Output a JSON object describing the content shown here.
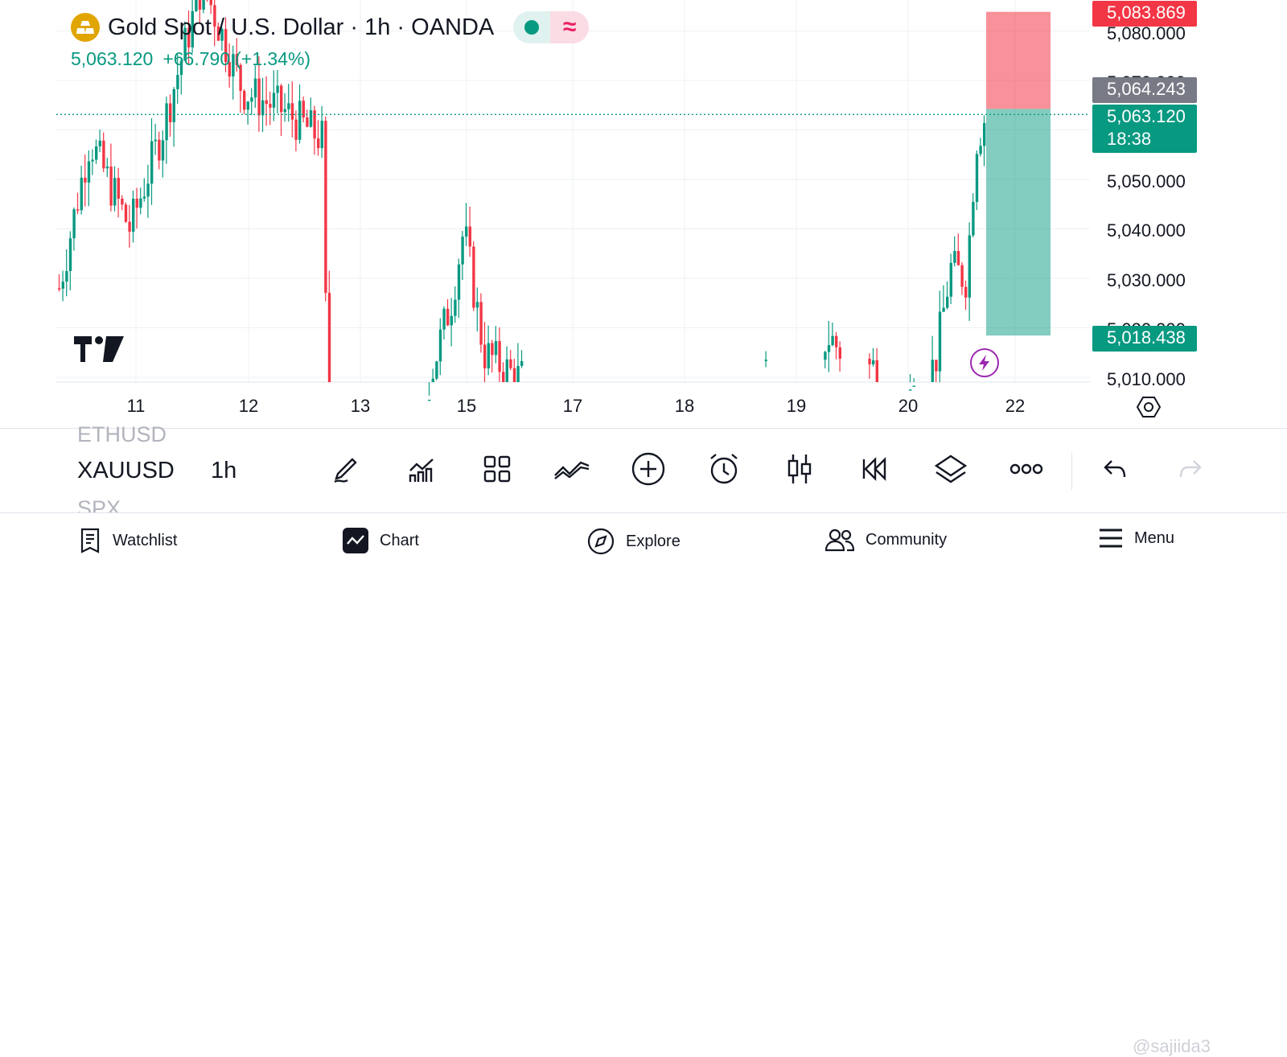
{
  "header": {
    "title": "Gold Spot / U.S. Dollar · 1h · OANDA",
    "status_pill": "≈"
  },
  "quote": {
    "last": "5,063.120",
    "change": "+66.790",
    "change_pct": "(+1.34%)"
  },
  "price_scale": {
    "labels": [
      "5,080.000",
      "5,070.000",
      "5,050.000",
      "5,040.000",
      "5,030.000",
      "5,020.000",
      "5,010.000"
    ],
    "tags": [
      {
        "price": 5083.869,
        "text": "5,083.869",
        "color": "#f23645"
      },
      {
        "price": 5064.243,
        "text": "5,064.243",
        "color": "#787b86"
      },
      {
        "price": 5063.12,
        "text": "5,063.120",
        "sub": "18:38",
        "color": "#089981"
      },
      {
        "price": 5018.438,
        "text": "5,018.438",
        "color": "#089981"
      }
    ]
  },
  "time_axis": {
    "labels": [
      "11",
      "12",
      "13",
      "15",
      "17",
      "18",
      "19",
      "20",
      "22"
    ]
  },
  "chart_data": {
    "type": "candlestick",
    "symbol": "XAUUSD",
    "interval": "1h",
    "visible_range": [
      5007,
      5085
    ],
    "current_price": 5063.12,
    "position": {
      "type": "long",
      "entry": 5064.243,
      "take_profit": 5083.869,
      "stop_loss": 5018.438
    },
    "colors": {
      "up": "#089981",
      "down": "#f23645"
    }
  },
  "toolbar": {
    "ghost_symbol_above": "ETHUSD",
    "symbol": "XAUUSD",
    "ghost_symbol_below": "SPX",
    "timeframe": "1h",
    "tools": [
      "pencil-icon",
      "indicators-icon",
      "templates-icon",
      "compare-icon",
      "add-icon",
      "alert-icon",
      "candles-icon",
      "replay-icon",
      "layers-icon",
      "more-icon",
      "undo-icon",
      "redo-icon"
    ]
  },
  "bottom_nav": {
    "items": [
      "Watchlist",
      "Chart",
      "Explore",
      "Community",
      "Menu"
    ]
  },
  "watermark": "@sajiida3"
}
